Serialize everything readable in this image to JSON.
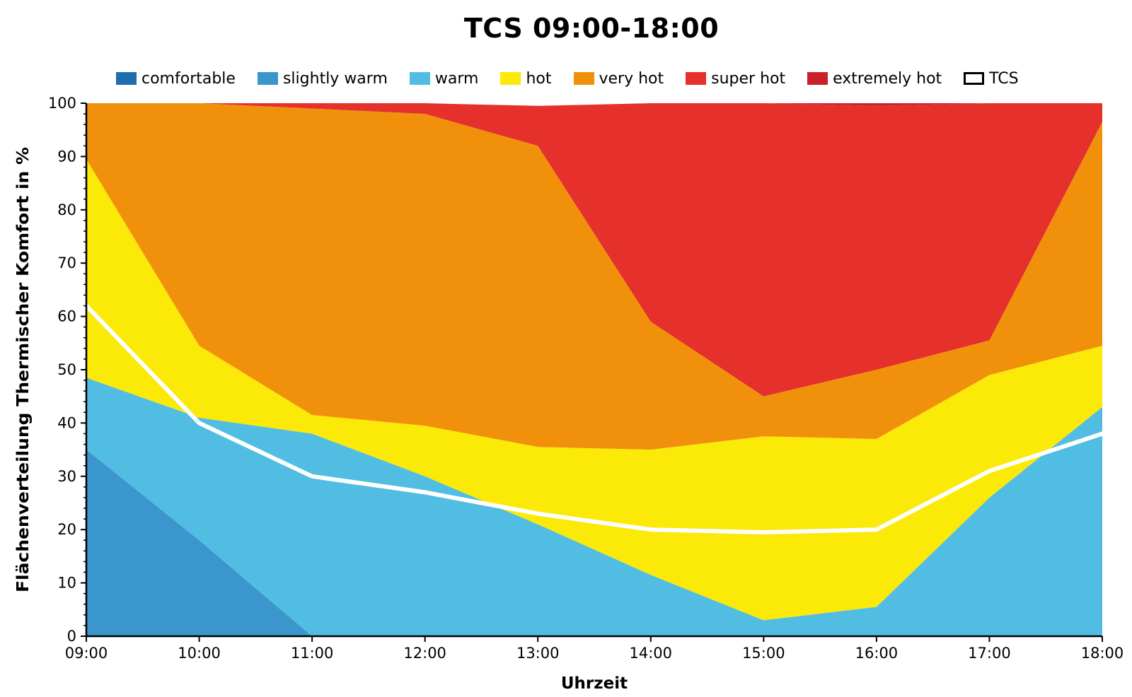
{
  "colors": {
    "comfortable": "#1f6fb0",
    "slightly_warm": "#3a96cc",
    "warm": "#52bde2",
    "hot": "#fbe907",
    "very_hot": "#f1910b",
    "super_hot": "#e5302b",
    "extremely_hot": "#c8212a",
    "tcs_line": "#ffffff"
  },
  "chart_data": {
    "type": "area",
    "stacked": true,
    "title": "TCS 09:00-18:00",
    "xlabel": "Uhrzeit",
    "ylabel": "Flächenverteilung Thermischer Komfort in %",
    "x": [
      "09:00",
      "10:00",
      "11:00",
      "12:00",
      "13:00",
      "14:00",
      "15:00",
      "16:00",
      "17:00",
      "18:00"
    ],
    "ylim": [
      0,
      100
    ],
    "yticks": [
      0,
      10,
      20,
      30,
      40,
      50,
      60,
      70,
      80,
      90,
      100
    ],
    "grid": false,
    "legend_position": "top",
    "series": [
      {
        "name": "comfortable",
        "color_key": "comfortable",
        "values": [
          0,
          0,
          0,
          0,
          0,
          0,
          0,
          0,
          0,
          0
        ]
      },
      {
        "name": "slightly warm",
        "color_key": "slightly_warm",
        "values": [
          35,
          18,
          0,
          0,
          0,
          0,
          0,
          0,
          0,
          0
        ]
      },
      {
        "name": "warm",
        "color_key": "warm",
        "values": [
          13.5,
          23,
          38,
          30,
          21,
          11.5,
          3,
          5.5,
          26,
          43
        ]
      },
      {
        "name": "hot",
        "color_key": "hot",
        "values": [
          41,
          13.5,
          3.5,
          9.5,
          14.5,
          23.5,
          34.5,
          31.5,
          23,
          11.5
        ]
      },
      {
        "name": "very hot",
        "color_key": "very_hot",
        "values": [
          10.5,
          45.5,
          57.5,
          58.5,
          56.5,
          24,
          7.5,
          13,
          6.5,
          42
        ]
      },
      {
        "name": "super hot",
        "color_key": "super_hot",
        "values": [
          0,
          0,
          1,
          2,
          7.5,
          41,
          55,
          49.5,
          44.5,
          3.5
        ]
      },
      {
        "name": "extremely hot",
        "color_key": "extremely_hot",
        "values": [
          0,
          0,
          0,
          0,
          0,
          0,
          0,
          0.5,
          0,
          0
        ]
      }
    ],
    "line_series": {
      "name": "TCS",
      "color_key": "tcs_line",
      "values": [
        62,
        40,
        30,
        27,
        23,
        20,
        19.5,
        20,
        31,
        38
      ]
    }
  }
}
